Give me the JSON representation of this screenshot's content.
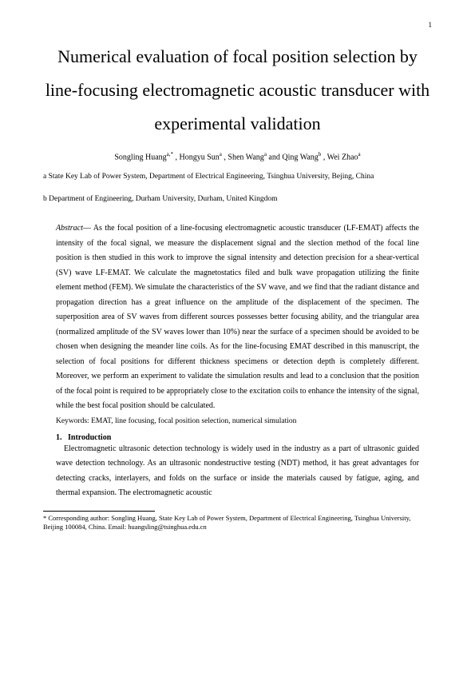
{
  "pageNumber": "1",
  "title": "Numerical evaluation of focal position selection by line-focusing electromagnetic acoustic transducer with experimental validation",
  "authors": {
    "a1_name": "Songling Huang",
    "a1_sup": "a,*",
    "a2_name": "Hongyu Sun",
    "a2_sup": "a",
    "a3_name": "Shen Wang",
    "a3_sup": "a",
    "a4_name": "Qing Wang",
    "a4_sup": "b",
    "a5_name": "Wei Zhao",
    "a5_sup": "a"
  },
  "affiliations": {
    "a": "a State Key Lab of Power System, Department of Electrical Engineering, Tsinghua University, Bejing, China",
    "b": "b Department of Engineering, Durham University, Durham, United Kingdom"
  },
  "abstractLabel": "Abstract",
  "abstractText": "— As the focal position of a line-focusing electromagnetic acoustic transducer (LF-EMAT) affects the intensity of the focal signal, we measure the displacement signal and the slection method of the focal line position is then studied in this work to improve the signal intensity and detection precision for a shear-vertical (SV) wave LF-EMAT. We calculate the magnetostatics filed and bulk wave propagation utilizing the finite element method (FEM). We simulate the characteristics of the SV wave, and we find that the radiant distance and propagation direction has a great influence on the amplitude of the displacement of the specimen. The superposition area of SV waves from different sources possesses better focusing ability, and the triangular area (normalized amplitude of the SV waves lower than 10%) near the surface of a specimen should be avoided to be chosen when designing the meander line coils. As for the line-focusing EMAT described in this manuscript, the selection of focal positions for different thickness specimens or detection depth is completely different. Moreover, we perform an experiment to validate the simulation results and lead to a conclusion that the position of the focal point is required to be appropriately close to the excitation coils to enhance the intensity of the signal, while the best focal position should be calculated.",
  "keywords": "Keywords: EMAT, line focusing, focal position selection, numerical simulation",
  "sectionNumber": "1.",
  "sectionTitle": "Introduction",
  "introText": "Electromagnetic ultrasonic detection technology is widely used in the industry as a part of ultrasonic guided wave detection technology. As an ultrasonic nondestructive testing (NDT) method, it has great advantages for detecting cracks, interlayers, and folds on the surface or inside the materials caused by fatigue, aging, and thermal expansion. The electromagnetic acoustic",
  "footnote": "* Corresponding author: Songling Huang, State Key Lab of Power System, Department of Electrical Engineering, Tsinghua University, Beijing 100084, China. Email: huangsling@tsinghua.edu.cn"
}
